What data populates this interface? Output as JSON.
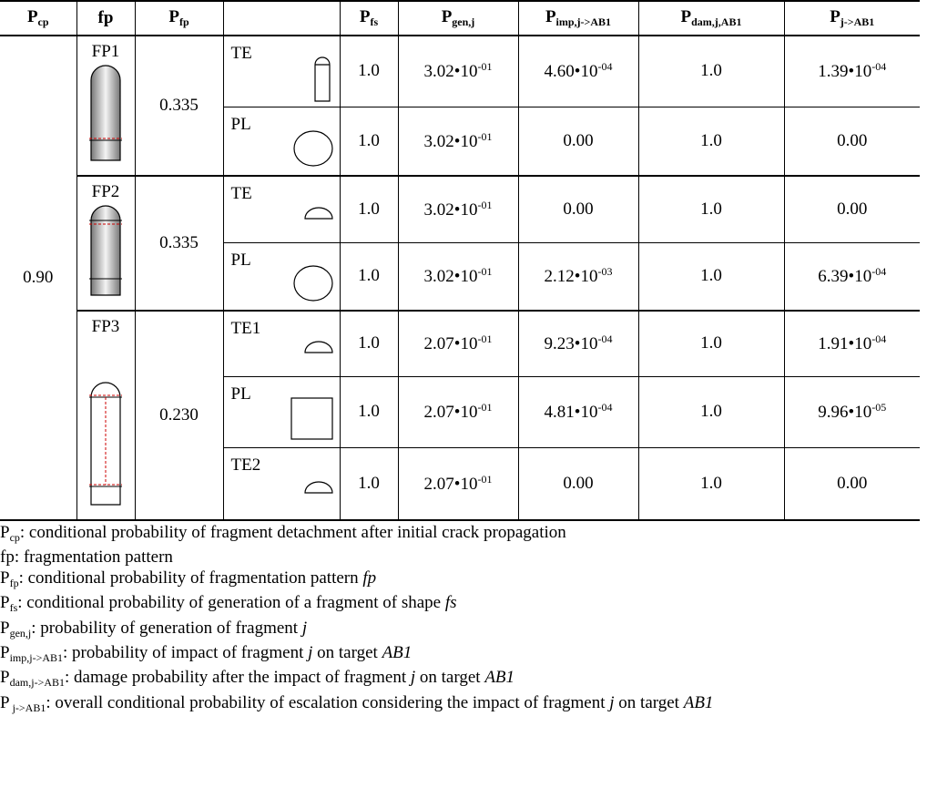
{
  "header": [
    {
      "main": "P",
      "sub": "cp"
    },
    {
      "main": "fp"
    },
    {
      "main": "P",
      "sub": "fp"
    },
    {
      "main": "P",
      "sub": "fs"
    },
    {
      "main": "P",
      "sub": "gen,j"
    },
    {
      "main": "P",
      "sub": "imp,j->AB1"
    },
    {
      "main": "P",
      "sub": "dam,j,AB1"
    },
    {
      "main": "P",
      "sub": "j->AB1"
    }
  ],
  "pcp": "0.90",
  "patterns": [
    {
      "name": "FP1",
      "pfp": "0.335",
      "fragments": [
        {
          "shape": "TE",
          "pfs": "1.0",
          "gen": {
            "base": "3.02•10",
            "exp": "-01"
          },
          "imp": {
            "base": "4.60•10",
            "exp": "-04"
          },
          "dam": "1.0",
          "pj": {
            "base": "1.39•10",
            "exp": "-04"
          }
        },
        {
          "shape": "PL",
          "pfs": "1.0",
          "gen": {
            "base": "3.02•10",
            "exp": "-01"
          },
          "imp": "0.00",
          "dam": "1.0",
          "pj": "0.00"
        }
      ]
    },
    {
      "name": "FP2",
      "pfp": "0.335",
      "fragments": [
        {
          "shape": "TE",
          "pfs": "1.0",
          "gen": {
            "base": "3.02•10",
            "exp": "-01"
          },
          "imp": "0.00",
          "dam": "1.0",
          "pj": "0.00"
        },
        {
          "shape": "PL",
          "pfs": "1.0",
          "gen": {
            "base": "3.02•10",
            "exp": "-01"
          },
          "imp": {
            "base": "2.12•10",
            "exp": "-03"
          },
          "dam": "1.0",
          "pj": {
            "base": "6.39•10",
            "exp": "-04"
          }
        }
      ]
    },
    {
      "name": "FP3",
      "pfp": "0.230",
      "fragments": [
        {
          "shape": "TE1",
          "pfs": "1.0",
          "gen": {
            "base": "2.07•10",
            "exp": "-01"
          },
          "imp": {
            "base": "9.23•10",
            "exp": "-04"
          },
          "dam": "1.0",
          "pj": {
            "base": "1.91•10",
            "exp": "-04"
          }
        },
        {
          "shape": "PL",
          "pfs": "1.0",
          "gen": {
            "base": "2.07•10",
            "exp": "-01"
          },
          "imp": {
            "base": "4.81•10",
            "exp": "-04"
          },
          "dam": "1.0",
          "pj": {
            "base": "9.96•10",
            "exp": "-05"
          }
        },
        {
          "shape": "TE2",
          "pfs": "1.0",
          "gen": {
            "base": "2.07•10",
            "exp": "-01"
          },
          "imp": "0.00",
          "dam": "1.0",
          "pj": "0.00"
        }
      ]
    }
  ],
  "notes": [
    {
      "sym": "P",
      "sub": "cp",
      "parts": [
        {
          "text": ": conditional probability of fragment detachment after initial crack propagation"
        }
      ]
    },
    {
      "parts": [
        {
          "text": "fp: fragmentation pattern"
        }
      ]
    },
    {
      "sym": "P",
      "sub": "fp",
      "parts": [
        {
          "text": ": conditional probability of fragmentation pattern "
        },
        {
          "text": "fp",
          "em": true
        }
      ]
    },
    {
      "sym": "P",
      "sub": "fs",
      "parts": [
        {
          "text": ": conditional probability of generation of a fragment of shape "
        },
        {
          "text": "fs",
          "em": true
        }
      ]
    },
    {
      "sym": "P",
      "sub": "gen,j",
      "parts": [
        {
          "text": ": probability of generation of fragment "
        },
        {
          "text": "j",
          "em": true
        }
      ]
    },
    {
      "sym": "P",
      "sub": "imp,j->AB1",
      "parts": [
        {
          "text": ": probability of impact of fragment "
        },
        {
          "text": "j",
          "em": true
        },
        {
          "text": " on target "
        },
        {
          "text": "AB1",
          "em": true
        }
      ]
    },
    {
      "sym": "P",
      "sub": "dam,j->AB1",
      "parts": [
        {
          "text": ": damage probability after the impact of fragment "
        },
        {
          "text": "j",
          "em": true
        },
        {
          "text": " on target "
        },
        {
          "text": "AB1",
          "em": true
        }
      ]
    },
    {
      "sym": "P",
      "sub": " j->AB1",
      "parts": [
        {
          "text": ": overall conditional probability of escalation considering the impact of fragment "
        },
        {
          "text": "j",
          "em": true
        },
        {
          "text": " on target "
        },
        {
          "text": "AB1",
          "em": true
        }
      ]
    }
  ]
}
